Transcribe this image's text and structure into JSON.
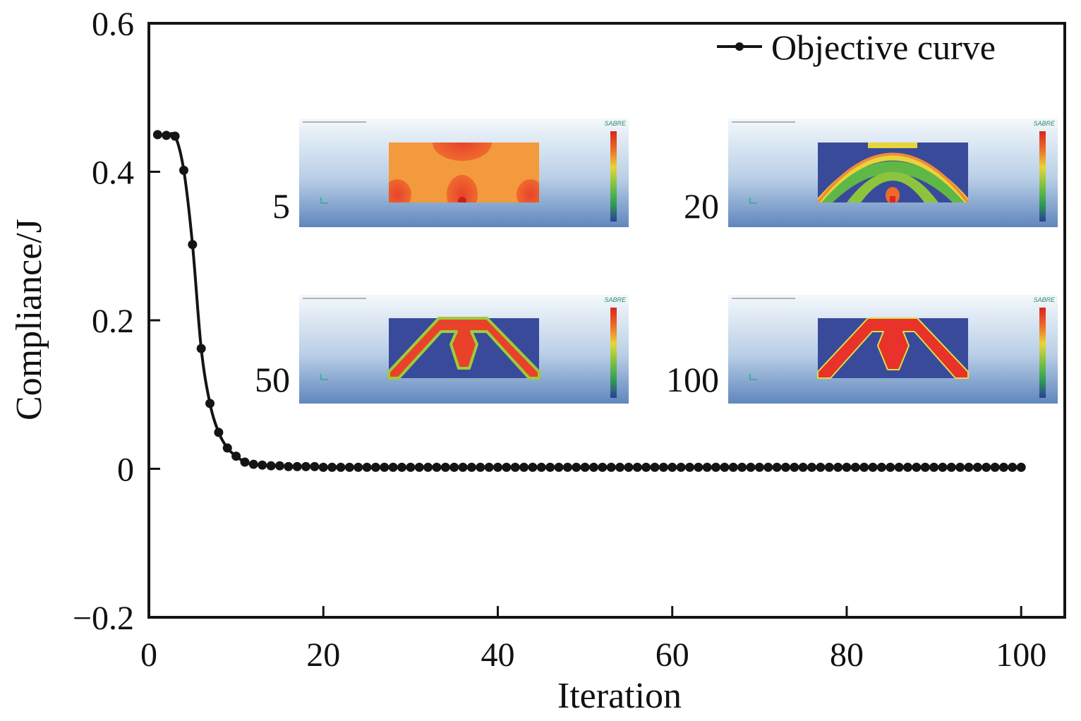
{
  "chart_data": {
    "type": "line",
    "title": "",
    "xlabel": "Iteration",
    "ylabel": "Compliance/J",
    "xlim": [
      0,
      105
    ],
    "ylim": [
      -0.2,
      0.6
    ],
    "x_ticks": [
      "0",
      "20",
      "40",
      "60",
      "80",
      "100"
    ],
    "y_ticks": [
      "−0.2",
      "0",
      "0.2",
      "0.4",
      "0.6"
    ],
    "grid": false,
    "legend_position": "top-right",
    "series": [
      {
        "name": "Objective curve",
        "color": "#141414",
        "marker": "circle",
        "x": [
          1,
          2,
          3,
          4,
          5,
          6,
          7,
          8,
          9,
          10,
          11,
          12,
          13,
          14,
          15,
          16,
          17,
          18,
          19,
          20,
          21,
          22,
          23,
          24,
          25,
          26,
          27,
          28,
          29,
          30,
          31,
          32,
          33,
          34,
          35,
          36,
          37,
          38,
          39,
          40,
          41,
          42,
          43,
          44,
          45,
          46,
          47,
          48,
          49,
          50,
          51,
          52,
          53,
          54,
          55,
          56,
          57,
          58,
          59,
          60,
          61,
          62,
          63,
          64,
          65,
          66,
          67,
          68,
          69,
          70,
          71,
          72,
          73,
          74,
          75,
          76,
          77,
          78,
          79,
          80,
          81,
          82,
          83,
          84,
          85,
          86,
          87,
          88,
          89,
          90,
          91,
          92,
          93,
          94,
          95,
          96,
          97,
          98,
          99,
          100
        ],
        "y": [
          0.45,
          0.449,
          0.448,
          0.402,
          0.302,
          0.162,
          0.088,
          0.049,
          0.028,
          0.017,
          0.009,
          0.006,
          0.005,
          0.004,
          0.004,
          0.003,
          0.003,
          0.003,
          0.003,
          0.002,
          0.002,
          0.002,
          0.002,
          0.002,
          0.002,
          0.002,
          0.002,
          0.002,
          0.002,
          0.002,
          0.002,
          0.002,
          0.002,
          0.002,
          0.002,
          0.002,
          0.002,
          0.002,
          0.002,
          0.002,
          0.002,
          0.002,
          0.002,
          0.002,
          0.002,
          0.002,
          0.002,
          0.002,
          0.002,
          0.002,
          0.002,
          0.002,
          0.002,
          0.002,
          0.002,
          0.002,
          0.002,
          0.002,
          0.002,
          0.002,
          0.002,
          0.002,
          0.002,
          0.002,
          0.002,
          0.002,
          0.002,
          0.002,
          0.002,
          0.002,
          0.002,
          0.002,
          0.002,
          0.002,
          0.002,
          0.002,
          0.002,
          0.002,
          0.002,
          0.002,
          0.002,
          0.002,
          0.002,
          0.002,
          0.002,
          0.002,
          0.002,
          0.002,
          0.002,
          0.002,
          0.002,
          0.002,
          0.002,
          0.002,
          0.002,
          0.002,
          0.002,
          0.002,
          0.002,
          0.002
        ]
      }
    ],
    "insets": [
      {
        "label": "5",
        "iteration": 5,
        "brand": "SABRE"
      },
      {
        "label": "20",
        "iteration": 20,
        "brand": "SABRE"
      },
      {
        "label": "50",
        "iteration": 50,
        "brand": "SABRE"
      },
      {
        "label": "100",
        "iteration": 100,
        "brand": "SABRE"
      }
    ]
  }
}
